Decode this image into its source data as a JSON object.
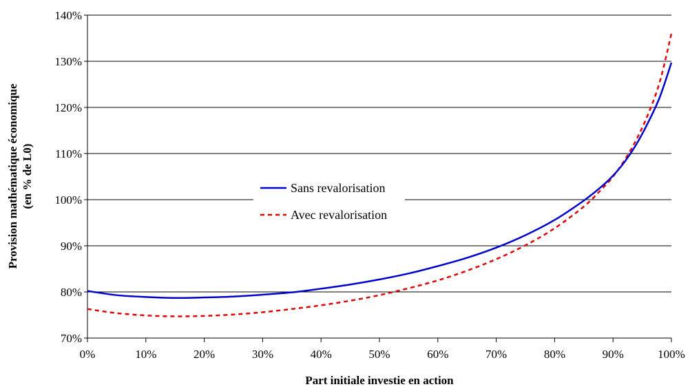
{
  "chart_data": {
    "type": "line",
    "title": "",
    "xlabel": "Part initiale investie en action",
    "ylabel_line1": "Provision mathématique économique",
    "ylabel_line2": "(en % de L0)",
    "xlim": [
      0,
      100
    ],
    "ylim": [
      70,
      140
    ],
    "x_ticks": [
      0,
      10,
      20,
      30,
      40,
      50,
      60,
      70,
      80,
      90,
      100
    ],
    "x_tick_labels": [
      "0%",
      "10%",
      "20%",
      "30%",
      "40%",
      "50%",
      "60%",
      "70%",
      "80%",
      "90%",
      "100%"
    ],
    "y_ticks": [
      70,
      80,
      90,
      100,
      110,
      120,
      130,
      140
    ],
    "y_tick_labels": [
      "70%",
      "80%",
      "90%",
      "100%",
      "110%",
      "120%",
      "130%",
      "140%"
    ],
    "grid": "horizontal",
    "legend_placement": "center-left",
    "series": [
      {
        "name": "Sans revalorisation",
        "color": "#0000cc",
        "style": "solid",
        "x": [
          0,
          5,
          10,
          15,
          20,
          25,
          30,
          35,
          40,
          45,
          50,
          55,
          60,
          65,
          70,
          75,
          80,
          85,
          88,
          90,
          92,
          94,
          96,
          98,
          100
        ],
        "y": [
          80.2,
          79.3,
          78.9,
          78.7,
          78.8,
          79.0,
          79.4,
          79.9,
          80.7,
          81.6,
          82.7,
          84.0,
          85.6,
          87.4,
          89.6,
          92.3,
          95.6,
          99.8,
          102.8,
          105.2,
          108.2,
          112.0,
          116.7,
          122.2,
          129.7
        ]
      },
      {
        "name": "Avec revalorisation",
        "color": "#e00000",
        "style": "dashed",
        "x": [
          0,
          5,
          10,
          15,
          20,
          25,
          30,
          35,
          40,
          45,
          50,
          55,
          60,
          65,
          70,
          75,
          80,
          85,
          88,
          90,
          92,
          94,
          96,
          98,
          100
        ],
        "y": [
          76.3,
          75.4,
          74.9,
          74.7,
          74.8,
          75.1,
          75.6,
          76.3,
          77.1,
          78.1,
          79.3,
          80.8,
          82.5,
          84.6,
          87.1,
          90.1,
          93.8,
          98.5,
          102.2,
          105.0,
          108.6,
          113.0,
          118.5,
          125.5,
          136.0
        ]
      }
    ]
  }
}
